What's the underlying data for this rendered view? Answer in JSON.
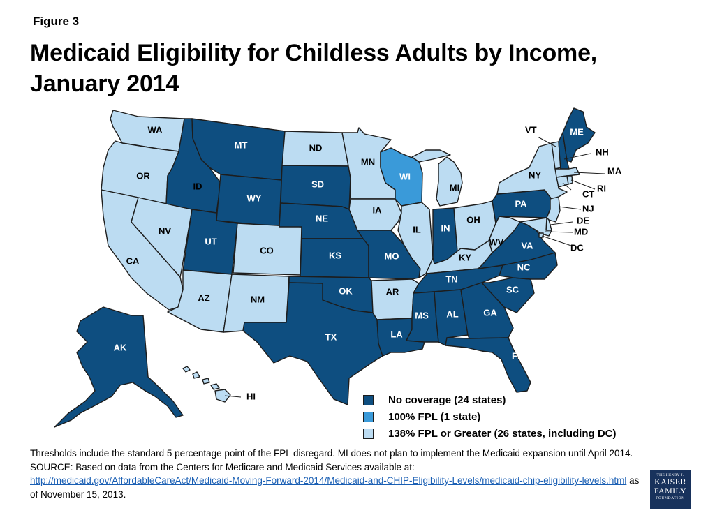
{
  "header": {
    "figure_label": "Figure 3",
    "title": "Medicaid Eligibility for Childless Adults by Income, January 2014"
  },
  "colors": {
    "no_coverage": "#0e4e80",
    "fpl_100": "#3a9ad9",
    "fpl_138": "#bcdcf2",
    "border": "#1d1d1d"
  },
  "legend": [
    {
      "key": "no_coverage",
      "label": "No coverage (24 states)"
    },
    {
      "key": "fpl_100",
      "label": "100% FPL (1 state)"
    },
    {
      "key": "fpl_138",
      "label": "138% FPL or Greater (26 states, including DC)"
    }
  ],
  "state_categories": {
    "WA": "fpl_138",
    "OR": "fpl_138",
    "CA": "fpl_138",
    "NV": "fpl_138",
    "AZ": "fpl_138",
    "NM": "fpl_138",
    "CO": "fpl_138",
    "ND": "fpl_138",
    "MN": "fpl_138",
    "IA": "fpl_138",
    "AR": "fpl_138",
    "IL": "fpl_138",
    "MI": "fpl_138",
    "OH": "fpl_138",
    "KY": "fpl_138",
    "WV": "fpl_138",
    "NY": "fpl_138",
    "VT": "fpl_138",
    "MA": "fpl_138",
    "RI": "fpl_138",
    "CT": "fpl_138",
    "NJ": "fpl_138",
    "DE": "fpl_138",
    "MD": "fpl_138",
    "DC": "fpl_138",
    "HI": "fpl_138",
    "WI": "fpl_100",
    "MT": "no_coverage",
    "ID": "no_coverage",
    "WY": "no_coverage",
    "UT": "no_coverage",
    "SD": "no_coverage",
    "NE": "no_coverage",
    "KS": "no_coverage",
    "OK": "no_coverage",
    "TX": "no_coverage",
    "MO": "no_coverage",
    "LA": "no_coverage",
    "MS": "no_coverage",
    "AL": "no_coverage",
    "GA": "no_coverage",
    "FL": "no_coverage",
    "SC": "no_coverage",
    "NC": "no_coverage",
    "TN": "no_coverage",
    "VA": "no_coverage",
    "IN": "no_coverage",
    "PA": "no_coverage",
    "ME": "no_coverage",
    "NH": "no_coverage",
    "AK": "no_coverage"
  },
  "state_labels": {
    "WA": "WA",
    "OR": "OR",
    "CA": "CA",
    "NV": "NV",
    "ID": "ID",
    "MT": "MT",
    "WY": "WY",
    "UT": "UT",
    "AZ": "AZ",
    "CO": "CO",
    "NM": "NM",
    "ND": "ND",
    "SD": "SD",
    "NE": "NE",
    "KS": "KS",
    "OK": "OK",
    "TX": "TX",
    "MN": "MN",
    "IA": "IA",
    "MO": "MO",
    "AR": "AR",
    "LA": "LA",
    "WI": "WI",
    "IL": "IL",
    "MI": "MI",
    "IN": "IN",
    "OH": "OH",
    "KY": "KY",
    "TN": "TN",
    "MS": "MS",
    "AL": "AL",
    "GA": "GA",
    "FL": "FL",
    "SC": "SC",
    "NC": "NC",
    "VA": "VA",
    "WV": "WV",
    "PA": "PA",
    "NY": "NY",
    "ME": "ME",
    "VT": "VT",
    "NH": "NH",
    "MA": "MA",
    "RI": "RI",
    "CT": "CT",
    "NJ": "NJ",
    "DE": "DE",
    "MD": "MD",
    "DC": "DC",
    "AK": "AK",
    "HI": "HI"
  },
  "notes": {
    "line1": "Thresholds include the standard 5 percentage point of the FPL disregard. MI does not plan to implement the Medicaid expansion until April 2014.",
    "source_prefix": "SOURCE: Based on data from the Centers for Medicare and Medicaid Services available at:",
    "source_link": "http://medicaid.gov/AffordableCareAct/Medicaid-Moving-Forward-2014/Medicaid-and-CHIP-Eligibility-Levels/medicaid-chip-eligibility-levels.html",
    "source_suffix": " as of November 15, 2013."
  },
  "logo": {
    "line1": "THE HENRY J.",
    "line2": "KAISER",
    "line3": "FAMILY",
    "line4": "FOUNDATION"
  }
}
